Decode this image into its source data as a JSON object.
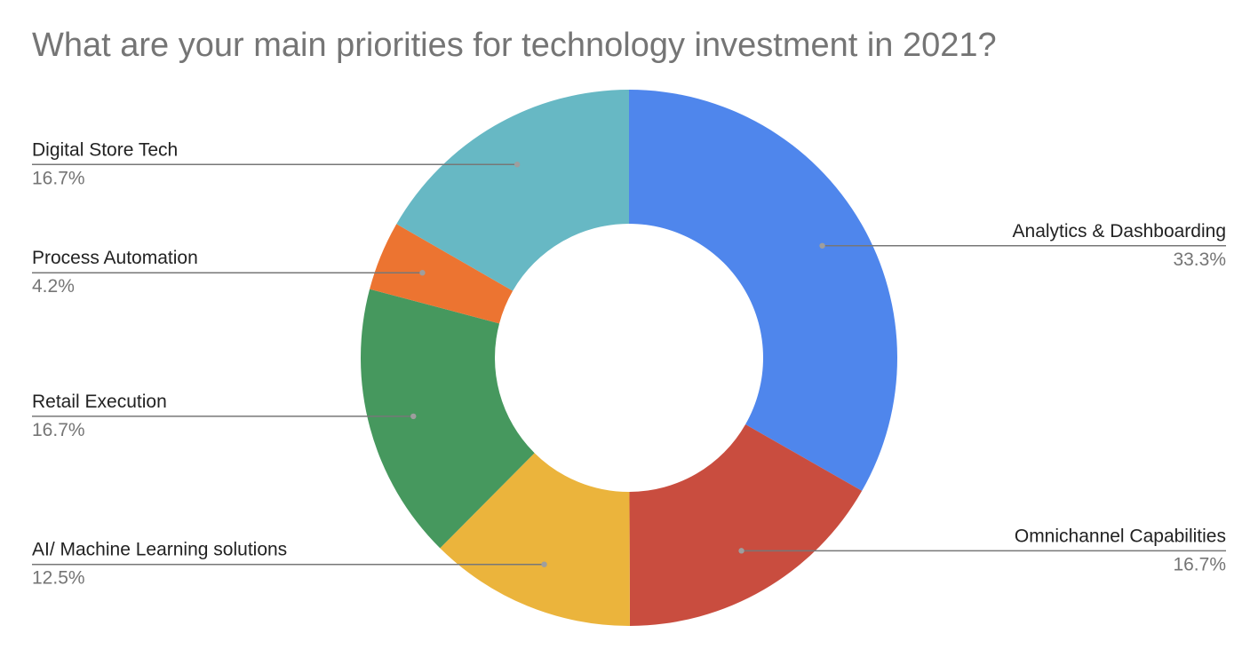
{
  "chart_data": {
    "type": "pie",
    "donut": true,
    "title": "What are your main priorities for technology investment in 2021?",
    "slices": [
      {
        "label": "Analytics & Dashboarding",
        "value": 33.3,
        "value_label": "33.3%",
        "color": "#4f86ec",
        "side": "right"
      },
      {
        "label": "Omnichannel Capabilities",
        "value": 16.7,
        "value_label": "16.7%",
        "color": "#c94d3f",
        "side": "right"
      },
      {
        "label": "AI/ Machine Learning solutions",
        "value": 12.5,
        "value_label": "12.5%",
        "color": "#ebb43c",
        "side": "left"
      },
      {
        "label": "Retail Execution",
        "value": 16.7,
        "value_label": "16.7%",
        "color": "#46985e",
        "side": "left"
      },
      {
        "label": "Process Automation",
        "value": 4.2,
        "value_label": "4.2%",
        "color": "#ec7431",
        "side": "left"
      },
      {
        "label": "Digital Store Tech",
        "value": 16.7,
        "value_label": "16.7%",
        "color": "#67b8c4",
        "side": "left"
      }
    ],
    "legend": "none",
    "label_style": "callout lines with name and percentage"
  }
}
